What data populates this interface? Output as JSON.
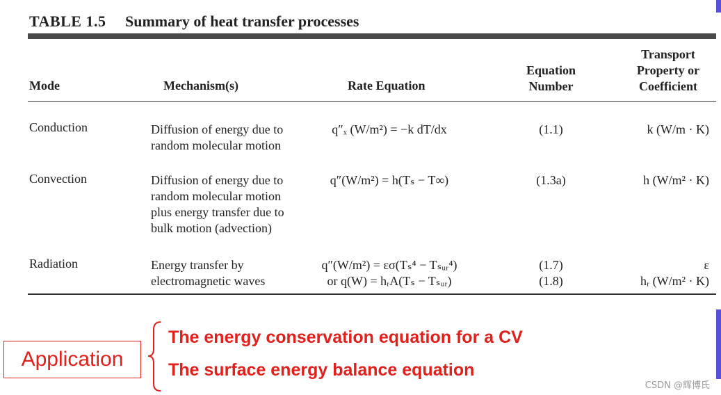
{
  "header": {
    "label": "TABLE 1.5",
    "title": "Summary of heat transfer processes"
  },
  "table": {
    "columns": [
      "Mode",
      "Mechanism(s)",
      "Rate Equation",
      "Equation Number",
      "Transport Property or Coefficient"
    ],
    "rows": [
      [
        "Conduction",
        "Diffusion of energy due to random molecular motion",
        [
          "q″ₓ (W/m²) = −k dT/dx"
        ],
        [
          "(1.1)"
        ],
        [
          "k (W/m · K)"
        ]
      ],
      [
        "Convection",
        "Diffusion of energy due to random molecular motion plus energy transfer due to bulk motion (advection)",
        [
          "q″(W/m²) = h(Tₛ − T∞)"
        ],
        [
          "(1.3a)"
        ],
        [
          "h (W/m² · K)"
        ]
      ],
      [
        "Radiation",
        "Energy transfer by electromagnetic waves",
        [
          "q″(W/m²) = εσ(Tₛ⁴ − Tₛᵤᵣ⁴)",
          "or q(W) = hᵣA(Tₛ − Tₛᵤᵣ)"
        ],
        [
          "(1.7)",
          "(1.8)"
        ],
        [
          "ε",
          "hᵣ (W/m² · K)"
        ]
      ]
    ]
  },
  "application": {
    "label": "Application",
    "items": [
      "The energy conservation equation for a CV",
      "The surface energy balance  equation"
    ]
  },
  "watermark": "CSDN @辉博氏"
}
